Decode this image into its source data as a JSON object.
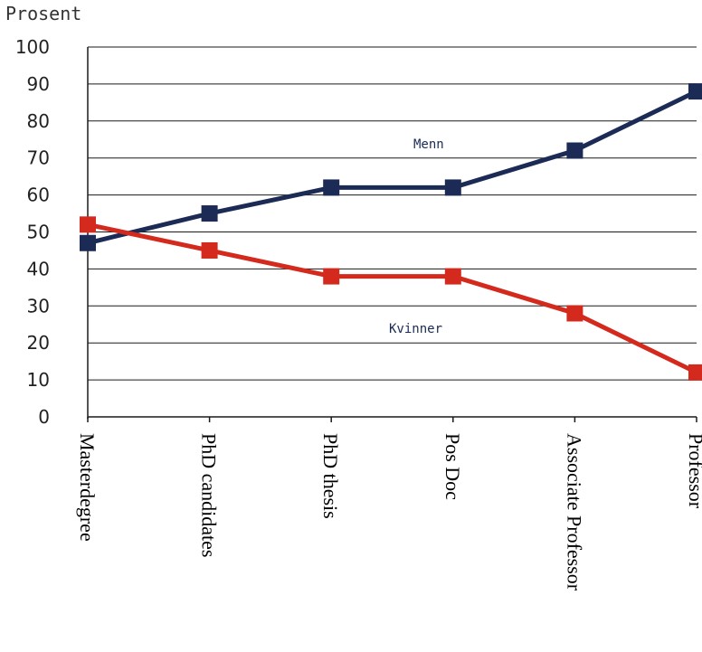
{
  "chart_data": {
    "type": "line",
    "ylabel": "Prosent",
    "ylim": [
      0,
      100
    ],
    "yticks": [
      "0",
      "10",
      "20",
      "30",
      "40",
      "50",
      "60",
      "70",
      "80",
      "90",
      "100"
    ],
    "categories": [
      "Masterdegree",
      "PhD candidates",
      "PhD thesis",
      "Pos Doc",
      "Associate Professor",
      "Professor"
    ],
    "series": [
      {
        "name": "Menn",
        "values": [
          47,
          55,
          62,
          62,
          72,
          88
        ],
        "color": "#1c2b55"
      },
      {
        "name": "Kvinner",
        "values": [
          52,
          45,
          38,
          38,
          28,
          12
        ],
        "color": "#d42a1e"
      }
    ],
    "grid": true,
    "legend": "inline labels"
  }
}
